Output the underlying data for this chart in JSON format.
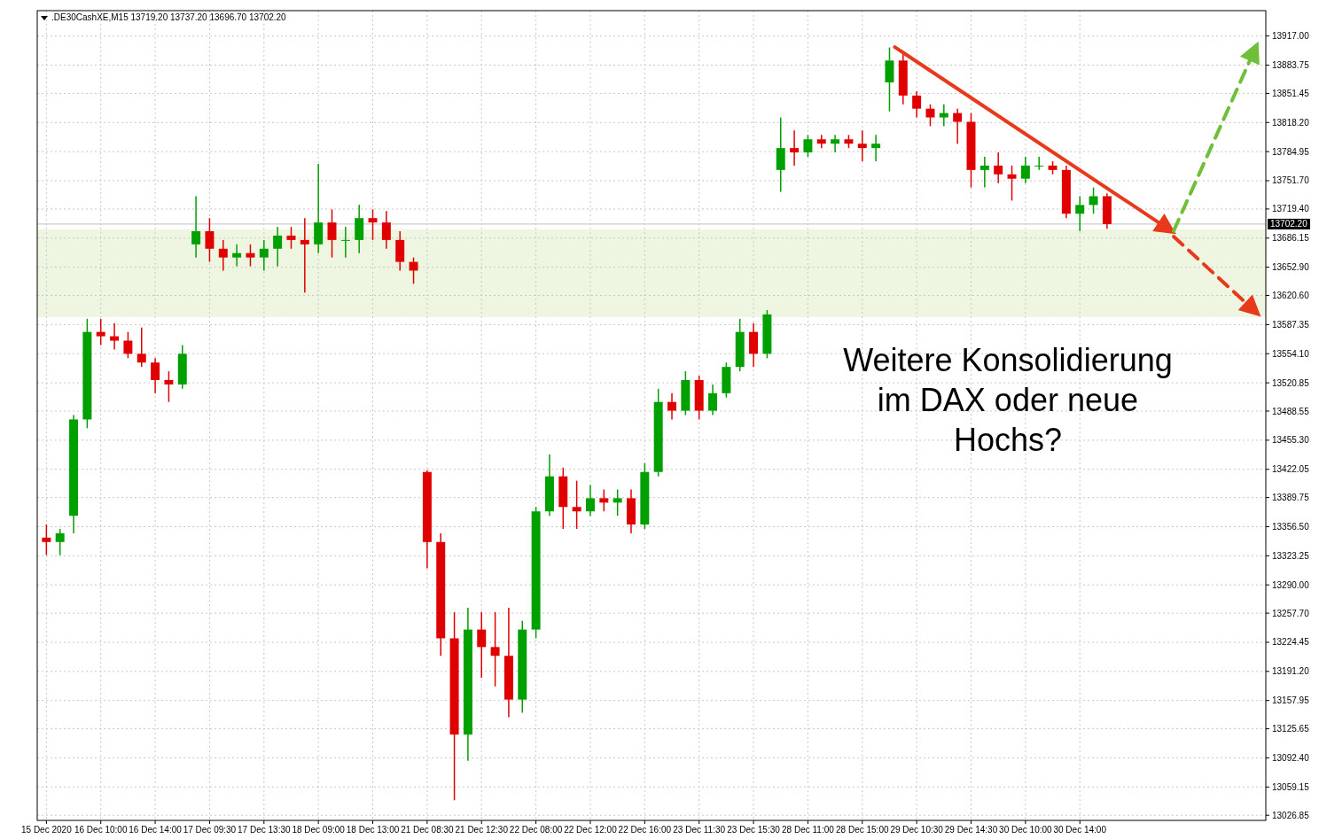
{
  "chart_data": {
    "type": "candlestick",
    "title": ".DE30CashXE,M15  13719.20 13737.20 13696.70 13702.20",
    "categories": [
      "15 Dec 2020",
      null,
      null,
      null,
      "16 Dec 10:00",
      null,
      null,
      null,
      "16 Dec 14:00",
      null,
      null,
      null,
      "17 Dec 09:30",
      null,
      null,
      null,
      "17 Dec 13:30",
      null,
      null,
      null,
      "18 Dec 09:00",
      null,
      null,
      null,
      "18 Dec 13:00",
      null,
      null,
      null,
      "21 Dec 08:30",
      null,
      null,
      null,
      "21 Dec 12:30",
      null,
      null,
      null,
      "22 Dec 08:00",
      null,
      null,
      null,
      "22 Dec 12:00",
      null,
      null,
      null,
      "22 Dec 16:00",
      null,
      null,
      null,
      "23 Dec 11:30",
      null,
      null,
      null,
      "23 Dec 15:30",
      null,
      null,
      null,
      "28 Dec 11:00",
      null,
      null,
      null,
      "28 Dec 15:00",
      null,
      null,
      null,
      "29 Dec 10:30",
      null,
      null,
      null,
      "29 Dec 14:30",
      null,
      null,
      null,
      "30 Dec 10:00",
      null,
      null,
      null,
      "30 Dec 14:00",
      null,
      null,
      null,
      null,
      null,
      null,
      null,
      null,
      null,
      null,
      null,
      null,
      null
    ],
    "ohlc": [
      [
        13344,
        13359,
        13324,
        13339
      ],
      [
        13339,
        13354,
        13324,
        13349
      ],
      [
        13369,
        13484,
        13349,
        13479
      ],
      [
        13479,
        13594,
        13469,
        13579
      ],
      [
        13579,
        13594,
        13564,
        13574
      ],
      [
        13574,
        13589,
        13559,
        13569
      ],
      [
        13569,
        13579,
        13549,
        13554
      ],
      [
        13554,
        13584,
        13539,
        13544
      ],
      [
        13544,
        13549,
        13509,
        13524
      ],
      [
        13524,
        13534,
        13499,
        13519
      ],
      [
        13519,
        13564,
        13514,
        13554
      ],
      [
        13679,
        13734,
        13664,
        13694
      ],
      [
        13694,
        13709,
        13659,
        13674
      ],
      [
        13674,
        13684,
        13649,
        13664
      ],
      [
        13664,
        13679,
        13654,
        13669
      ],
      [
        13669,
        13679,
        13654,
        13664
      ],
      [
        13664,
        13684,
        13649,
        13674
      ],
      [
        13674,
        13699,
        13654,
        13689
      ],
      [
        13689,
        13699,
        13674,
        13684
      ],
      [
        13684,
        13709,
        13624,
        13679
      ],
      [
        13679,
        13771,
        13669,
        13704
      ],
      [
        13704,
        13719,
        13664,
        13684
      ],
      [
        13684,
        13699,
        13664,
        13684
      ],
      [
        13684,
        13724,
        13669,
        13709
      ],
      [
        13709,
        13719,
        13684,
        13704
      ],
      [
        13704,
        13717,
        13674,
        13684
      ],
      [
        13684,
        13694,
        13649,
        13659
      ],
      [
        13659,
        13664,
        13634,
        13649
      ],
      [
        13419,
        13421,
        13309,
        13339
      ],
      [
        13339,
        13349,
        13209,
        13229
      ],
      [
        13229,
        13259,
        13044,
        13119
      ],
      [
        13119,
        13264,
        13089,
        13239
      ],
      [
        13239,
        13259,
        13184,
        13219
      ],
      [
        13219,
        13259,
        13174,
        13209
      ],
      [
        13209,
        13264,
        13139,
        13159
      ],
      [
        13159,
        13249,
        13144,
        13239
      ],
      [
        13239,
        13379,
        13229,
        13374
      ],
      [
        13374,
        13439,
        13369,
        13414
      ],
      [
        13414,
        13424,
        13354,
        13379
      ],
      [
        13379,
        13409,
        13354,
        13374
      ],
      [
        13374,
        13404,
        13369,
        13389
      ],
      [
        13389,
        13399,
        13374,
        13384
      ],
      [
        13384,
        13399,
        13369,
        13389
      ],
      [
        13389,
        13399,
        13349,
        13359
      ],
      [
        13359,
        13429,
        13354,
        13419
      ],
      [
        13419,
        13514,
        13414,
        13499
      ],
      [
        13499,
        13509,
        13479,
        13489
      ],
      [
        13489,
        13534,
        13484,
        13524
      ],
      [
        13524,
        13529,
        13479,
        13489
      ],
      [
        13489,
        13519,
        13484,
        13509
      ],
      [
        13509,
        13544,
        13504,
        13539
      ],
      [
        13539,
        13594,
        13534,
        13579
      ],
      [
        13579,
        13589,
        13539,
        13554
      ],
      [
        13554,
        13604,
        13549,
        13599
      ],
      [
        13764,
        13824,
        13739,
        13789
      ],
      [
        13789,
        13809,
        13769,
        13784
      ],
      [
        13784,
        13804,
        13779,
        13799
      ],
      [
        13799,
        13804,
        13789,
        13794
      ],
      [
        13794,
        13804,
        13784,
        13799
      ],
      [
        13799,
        13804,
        13789,
        13794
      ],
      [
        13794,
        13809,
        13774,
        13789
      ],
      [
        13789,
        13804,
        13774,
        13794
      ],
      [
        13864,
        13904,
        13831,
        13889
      ],
      [
        13889,
        13899,
        13839,
        13849
      ],
      [
        13849,
        13854,
        13824,
        13834
      ],
      [
        13834,
        13839,
        13814,
        13824
      ],
      [
        13824,
        13839,
        13814,
        13829
      ],
      [
        13829,
        13834,
        13794,
        13819
      ],
      [
        13819,
        13829,
        13744,
        13764
      ],
      [
        13764,
        13779,
        13744,
        13769
      ],
      [
        13769,
        13784,
        13749,
        13759
      ],
      [
        13759,
        13769,
        13729,
        13754
      ],
      [
        13754,
        13779,
        13749,
        13769
      ],
      [
        13769,
        13779,
        13764,
        13769
      ],
      [
        13769,
        13774,
        13759,
        13764
      ],
      [
        13764,
        13769,
        13709,
        13714
      ],
      [
        13714,
        13734,
        13694,
        13724
      ],
      [
        13724,
        13744,
        13714,
        13734
      ],
      [
        13734,
        13737.2,
        13696.7,
        13702.2
      ],
      null,
      null,
      null,
      null,
      null,
      null,
      null,
      null,
      null,
      null,
      null
    ],
    "ylim": [
      13021,
      13946
    ],
    "yticks": [
      {
        "value": 13917,
        "label": "13917.00"
      },
      {
        "value": 13883.75,
        "label": "13883.75"
      },
      {
        "value": 13851.45,
        "label": "13851.45"
      },
      {
        "value": 13818.2,
        "label": "13818.20"
      },
      {
        "value": 13784.95,
        "label": "13784.95"
      },
      {
        "value": 13751.7,
        "label": "13751.70"
      },
      {
        "value": 13719.4,
        "label": "13719.40"
      },
      {
        "value": 13686.15,
        "label": "13686.15"
      },
      {
        "value": 13652.9,
        "label": "13652.90"
      },
      {
        "value": 13620.6,
        "label": "13620.60"
      },
      {
        "value": 13587.35,
        "label": "13587.35"
      },
      {
        "value": 13554.1,
        "label": "13554.10"
      },
      {
        "value": 13520.85,
        "label": "13520.85"
      },
      {
        "value": 13488.55,
        "label": "13488.55"
      },
      {
        "value": 13455.3,
        "label": "13455.30"
      },
      {
        "value": 13422.05,
        "label": "13422.05"
      },
      {
        "value": 13389.75,
        "label": "13389.75"
      },
      {
        "value": 13356.5,
        "label": "13356.50"
      },
      {
        "value": 13323.25,
        "label": "13323.25"
      },
      {
        "value": 13290,
        "label": "13290.00"
      },
      {
        "value": 13257.7,
        "label": "13257.70"
      },
      {
        "value": 13224.45,
        "label": "13224.45"
      },
      {
        "value": 13191.2,
        "label": "13191.20"
      },
      {
        "value": 13157.95,
        "label": "13157.95"
      },
      {
        "value": 13125.65,
        "label": "13125.65"
      },
      {
        "value": 13092.4,
        "label": "13092.40"
      },
      {
        "value": 13059.15,
        "label": "13059.15"
      },
      {
        "value": 13026.85,
        "label": "13026.85"
      }
    ],
    "grid": true,
    "ref_lines": [
      {
        "axis": "y",
        "value": 13702.2,
        "label": "13702.20",
        "color": "#c0c0c0"
      }
    ],
    "bands": [
      {
        "axis": "y",
        "from": 13596,
        "to": 13696,
        "color": "#eef6e2"
      }
    ],
    "annotations": [
      "Weitere Konsolidierung im DAX oder neue Hochs?"
    ]
  }
}
